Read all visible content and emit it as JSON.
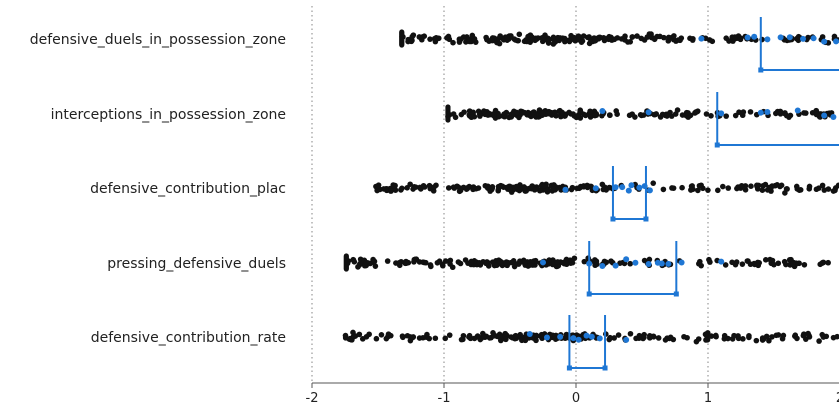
{
  "chart_data": {
    "type": "scatter",
    "title": "",
    "xlabel": "",
    "ylabel": "",
    "x_range": [
      -2,
      2
    ],
    "x_ticks": [
      -2,
      -1,
      0,
      1,
      2
    ],
    "x_tick_labels": [
      "-2",
      "-1",
      "0",
      "1",
      "2"
    ],
    "grid": "vertical dotted lines at x ticks",
    "categories": [
      "defensive_duels_in_possession_zone",
      "interceptions_in_possession_zone",
      "defensive_contribution_plac",
      "pressing_defensive_duels",
      "defensive_contribution_rate"
    ],
    "series": [
      {
        "category": "defensive_duels_in_possession_zone",
        "x_min": -1.32,
        "x_max": 2.0,
        "min_cluster": true,
        "highlight_points": [
          0.95,
          1.3,
          1.35,
          1.45,
          1.55,
          1.62,
          1.72,
          1.8,
          1.88,
          1.97
        ],
        "interval": [
          1.4,
          2.0
        ],
        "interval_open_right": true
      },
      {
        "category": "interceptions_in_possession_zone",
        "x_min": -0.97,
        "x_max": 2.0,
        "min_cluster": true,
        "highlight_points": [
          0.2,
          0.55,
          1.1,
          1.4,
          1.45,
          1.68,
          1.88,
          1.95
        ],
        "interval": [
          1.07,
          2.0
        ],
        "interval_open_right": true
      },
      {
        "category": "defensive_contribution_plac",
        "x_min": -1.52,
        "x_max": 2.0,
        "min_cluster": false,
        "highlight_points": [
          -0.08,
          0.15,
          0.3,
          0.35,
          0.4,
          0.42,
          0.48,
          0.52,
          0.56
        ],
        "interval": [
          0.28,
          0.53
        ],
        "interval_open_right": false
      },
      {
        "category": "pressing_defensive_duels",
        "x_min": -1.74,
        "x_max": 1.95,
        "min_cluster": true,
        "highlight_points": [
          -0.25,
          0.1,
          0.2,
          0.3,
          0.38,
          0.45,
          0.55,
          0.62,
          0.65,
          0.7,
          0.8,
          1.1
        ],
        "interval": [
          0.1,
          0.76
        ],
        "interval_open_right": false
      },
      {
        "category": "defensive_contribution_rate",
        "x_min": -1.75,
        "x_max": 2.0,
        "min_cluster": false,
        "highlight_points": [
          -0.35,
          -0.22,
          -0.12,
          -0.02,
          0.02,
          0.08,
          0.12,
          0.18,
          0.38
        ],
        "interval": [
          -0.05,
          0.22
        ],
        "interval_open_right": false
      }
    ],
    "colors": {
      "points": "#111111",
      "highlight": "#1f77d4",
      "interval": "#1f77d4",
      "grid": "#9a9a9a",
      "axis": "#555555"
    }
  }
}
